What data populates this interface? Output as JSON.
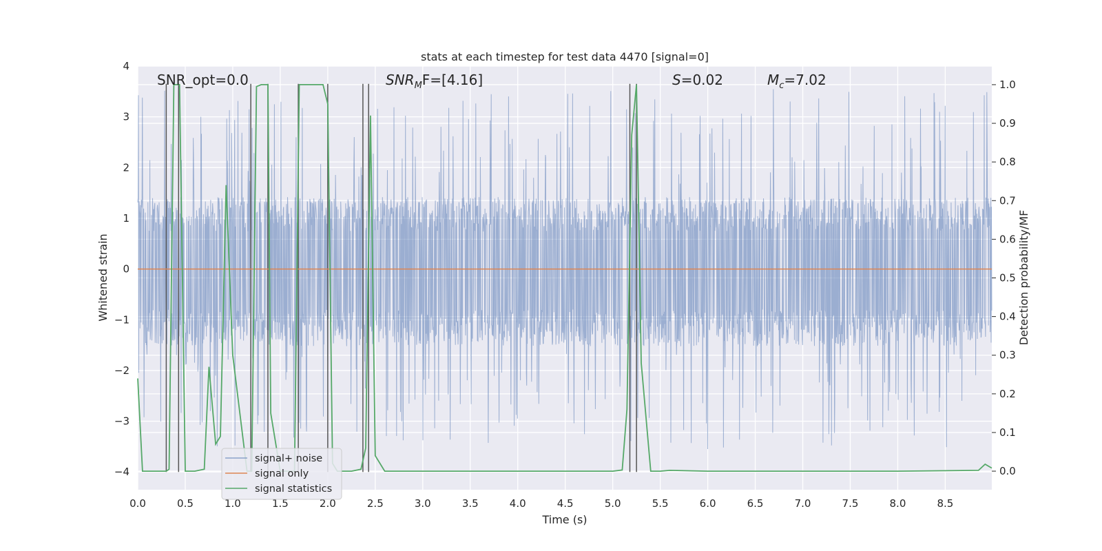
{
  "chart_data": {
    "type": "line",
    "title": "stats at each timestep for test data 4470 [signal=0]",
    "xlabel": "Time (s)",
    "ylabel_left": "Whitened strain",
    "ylabel_right": "Detection probability/MF",
    "xlim": [
      0.0,
      8.99
    ],
    "ylim_left": [
      -4.35,
      4.0
    ],
    "ylim_right": [
      -0.048,
      1.048
    ],
    "grid": true,
    "x_ticks": [
      "0.0",
      "0.5",
      "1.0",
      "1.5",
      "2.0",
      "2.5",
      "3.0",
      "3.5",
      "4.0",
      "4.5",
      "5.0",
      "5.5",
      "6.0",
      "6.5",
      "7.0",
      "7.5",
      "8.0",
      "8.5"
    ],
    "y_left_ticks": [
      "4",
      "3",
      "2",
      "1",
      "0",
      "−1",
      "−2",
      "−3",
      "−4"
    ],
    "y_right_ticks": [
      "1.0",
      "0.9",
      "0.8",
      "0.7",
      "0.6",
      "0.5",
      "0.4",
      "0.3",
      "0.2",
      "0.1",
      "0.0"
    ],
    "annotations": {
      "snr_opt": "SNR_opt=0.0",
      "snr_mf_main": "SNR",
      "snr_mf_sub": "M",
      "snr_mf_tail": "F=[4.16]",
      "s_main": "S",
      "s_tail": "=0.02",
      "mc_main": "M",
      "mc_sub": "c",
      "mc_tail": "=7.02"
    },
    "legend": {
      "location": "lower-left",
      "entries": [
        "signal+ noise",
        "signal only",
        "signal statistics"
      ]
    },
    "series": [
      {
        "name": "signal+ noise",
        "axis": "left",
        "color": "#4c72b0",
        "style": "dense noise, amplitude about ±1.4 with spikes to ±3.6",
        "band_low": -1.45,
        "band_high": 1.35,
        "spike_max": 3.6,
        "spike_min": -4.0
      },
      {
        "name": "signal only",
        "axis": "left",
        "color": "#dd8452",
        "x": [
          0.0,
          8.99
        ],
        "values": [
          0.0,
          0.0
        ]
      },
      {
        "name": "signal statistics",
        "axis": "right",
        "color": "#55a868",
        "x": [
          0.0,
          0.05,
          0.3,
          0.33,
          0.38,
          0.44,
          0.5,
          0.6,
          0.7,
          0.75,
          0.82,
          0.87,
          0.93,
          1.0,
          1.15,
          1.2,
          1.25,
          1.3,
          1.37,
          1.4,
          1.5,
          1.65,
          1.7,
          1.75,
          1.95,
          2.0,
          2.05,
          2.1,
          2.25,
          2.35,
          2.4,
          2.45,
          2.5,
          2.6,
          2.8,
          3.5,
          4.5,
          5.0,
          5.1,
          5.15,
          5.2,
          5.25,
          5.3,
          5.4,
          5.5,
          5.6,
          6.0,
          7.0,
          8.0,
          8.85,
          8.92,
          8.99
        ],
        "values": [
          0.24,
          0.0,
          0.0,
          0.005,
          1.0,
          1.0,
          0.0,
          0.0,
          0.005,
          0.27,
          0.07,
          0.09,
          0.74,
          0.3,
          0.0,
          0.0,
          0.995,
          1.0,
          1.0,
          0.15,
          0.0,
          0.0,
          1.0,
          1.0,
          1.0,
          0.95,
          0.02,
          0.0,
          0.0,
          0.005,
          0.06,
          0.92,
          0.04,
          0.0,
          0.0,
          0.0,
          0.0,
          0.0,
          0.003,
          0.16,
          0.87,
          1.0,
          0.28,
          0.0,
          0.0,
          0.002,
          0.0,
          0.0,
          0.0,
          0.002,
          0.018,
          0.008
        ]
      }
    ],
    "vertical_markers": {
      "color": "#555555",
      "axis": "left",
      "x": [
        0.3,
        0.43,
        1.19,
        1.37,
        1.69,
        2.0,
        2.37,
        2.43,
        5.18,
        5.25
      ],
      "y_range": [
        -4.0,
        3.65
      ]
    }
  }
}
